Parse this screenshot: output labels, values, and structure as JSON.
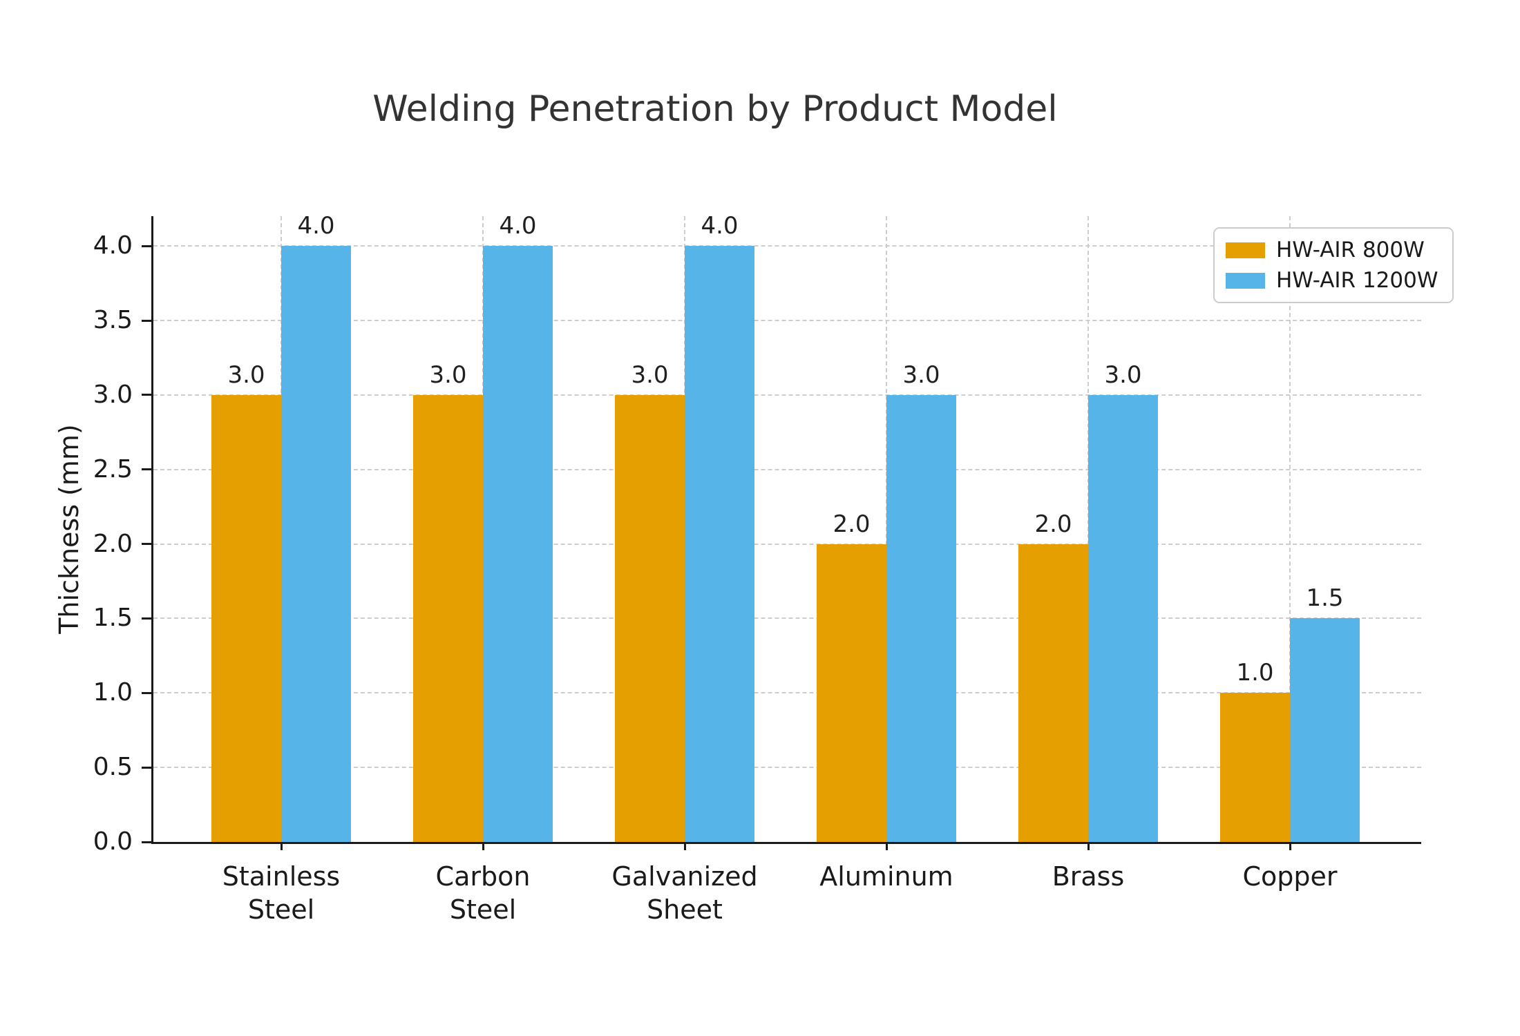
{
  "title": "Welding Penetration by Product Model",
  "chart_data": {
    "type": "bar",
    "title": "Welding Penetration by Product Model",
    "ylabel": "Thickness (mm)",
    "xlabel": "",
    "categories": [
      "Stainless\nSteel",
      "Carbon\nSteel",
      "Galvanized\nSheet",
      "Aluminum",
      "Brass",
      "Copper"
    ],
    "series": [
      {
        "name": "HW-AIR 800W",
        "color": "#E69F00",
        "values": [
          3.0,
          3.0,
          3.0,
          2.0,
          2.0,
          1.0
        ]
      },
      {
        "name": "HW-AIR 1200W",
        "color": "#56B4E9",
        "values": [
          4.0,
          4.0,
          4.0,
          3.0,
          3.0,
          1.5
        ]
      }
    ],
    "ylim": [
      0.0,
      4.2
    ],
    "yticks": [
      0.0,
      0.5,
      1.0,
      1.5,
      2.0,
      2.5,
      3.0,
      3.5,
      4.0
    ],
    "ytick_labels": [
      "0.0",
      "0.5",
      "1.0",
      "1.5",
      "2.0",
      "2.5",
      "3.0",
      "3.5",
      "4.0"
    ],
    "value_labels": {
      "series_0": [
        "3.0",
        "3.0",
        "3.0",
        "2.0",
        "2.0",
        "1.0"
      ],
      "series_1": [
        "4.0",
        "4.0",
        "4.0",
        "3.0",
        "3.0",
        "1.5"
      ]
    },
    "grid": {
      "horizontal": true,
      "vertical": true,
      "style": "dashed",
      "color": "#cdcdcd"
    },
    "legend": {
      "position": "upper right",
      "entries": [
        "HW-AIR 800W",
        "HW-AIR 1200W"
      ]
    },
    "colors": {
      "series_800w": "#E69F00",
      "series_1200w": "#56B4E9",
      "axis": "#1a1a1a",
      "title_text": "#333333"
    }
  }
}
